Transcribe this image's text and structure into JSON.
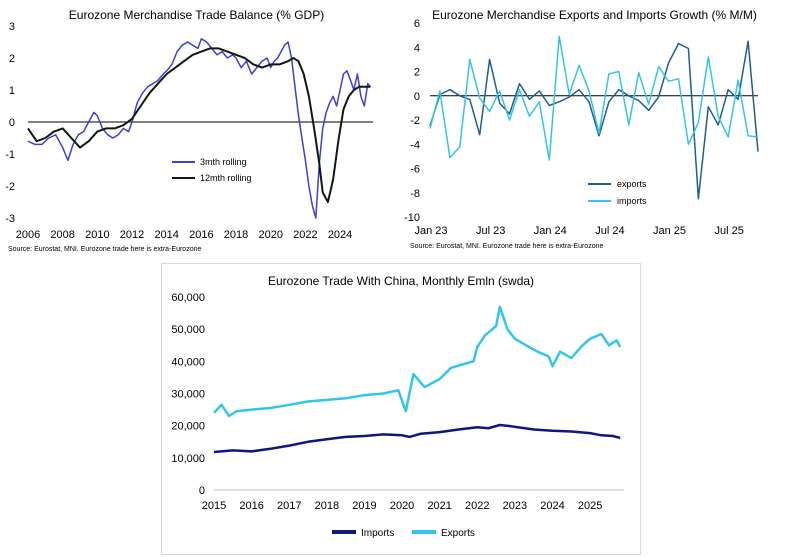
{
  "chart_data": [
    {
      "type": "line",
      "title": "Eurozone Merchandise Trade Balance (% GDP)",
      "xlabel": "",
      "ylabel": "",
      "ylim": [
        -3,
        3
      ],
      "xlim": [
        2006,
        2025.9
      ],
      "yticks": [
        "-3",
        "-2",
        "-1",
        "0",
        "1",
        "2",
        "3"
      ],
      "xticks": [
        "2006",
        "2008",
        "2010",
        "2012",
        "2014",
        "2016",
        "2018",
        "2020",
        "2022",
        "2024"
      ],
      "legend_position": "center",
      "source": "Source: Eurostat, MNI.  Eurozone trade here is extra-Eurozone",
      "series": [
        {
          "name": "3mth rolling",
          "color": "#3f3fcc",
          "x": [
            2006.0,
            2006.4,
            2006.8,
            2007.2,
            2007.6,
            2008.0,
            2008.3,
            2008.6,
            2008.9,
            2009.2,
            2009.5,
            2009.8,
            2010.0,
            2010.3,
            2010.6,
            2010.9,
            2011.2,
            2011.5,
            2011.8,
            2012.0,
            2012.3,
            2012.6,
            2012.9,
            2013.2,
            2013.5,
            2013.8,
            2014.0,
            2014.3,
            2014.6,
            2014.9,
            2015.2,
            2015.5,
            2015.8,
            2016.0,
            2016.3,
            2016.6,
            2016.9,
            2017.2,
            2017.5,
            2017.8,
            2018.0,
            2018.3,
            2018.6,
            2018.9,
            2019.2,
            2019.5,
            2019.8,
            2020.0,
            2020.2,
            2020.4,
            2020.6,
            2020.8,
            2021.0,
            2021.2,
            2021.4,
            2021.6,
            2021.8,
            2022.0,
            2022.2,
            2022.4,
            2022.6,
            2022.8,
            2023.0,
            2023.2,
            2023.4,
            2023.6,
            2023.8,
            2024.0,
            2024.2,
            2024.4,
            2024.6,
            2024.8,
            2025.0,
            2025.2,
            2025.4,
            2025.6,
            2025.75
          ],
          "values": [
            -0.6,
            -0.7,
            -0.7,
            -0.5,
            -0.4,
            -0.8,
            -1.2,
            -0.7,
            -0.4,
            -0.3,
            0.0,
            0.3,
            0.2,
            -0.2,
            -0.4,
            -0.5,
            -0.4,
            -0.2,
            -0.3,
            0.0,
            0.6,
            0.9,
            1.1,
            1.2,
            1.3,
            1.5,
            1.6,
            1.8,
            2.2,
            2.4,
            2.5,
            2.4,
            2.3,
            2.6,
            2.5,
            2.3,
            2.1,
            2.2,
            2.0,
            2.1,
            2.0,
            1.7,
            1.9,
            1.5,
            1.7,
            1.9,
            2.0,
            1.7,
            1.9,
            2.0,
            2.2,
            2.4,
            2.5,
            2.0,
            1.1,
            0.2,
            -0.5,
            -1.2,
            -2.0,
            -2.6,
            -3.0,
            -1.3,
            -0.2,
            0.3,
            0.6,
            0.8,
            0.5,
            1.0,
            1.5,
            1.6,
            1.3,
            1.0,
            1.5,
            0.8,
            0.5,
            1.2,
            1.1
          ]
        },
        {
          "name": "12mth rolling",
          "color": "#0d1a0d",
          "x": [
            2006.0,
            2006.5,
            2007.0,
            2007.5,
            2008.0,
            2008.5,
            2009.0,
            2009.5,
            2010.0,
            2010.5,
            2011.0,
            2011.5,
            2012.0,
            2012.5,
            2013.0,
            2013.5,
            2014.0,
            2014.5,
            2015.0,
            2015.5,
            2016.0,
            2016.5,
            2017.0,
            2017.5,
            2018.0,
            2018.5,
            2019.0,
            2019.5,
            2020.0,
            2020.5,
            2021.0,
            2021.3,
            2021.6,
            2021.9,
            2022.2,
            2022.5,
            2022.8,
            2023.0,
            2023.3,
            2023.6,
            2023.9,
            2024.2,
            2024.5,
            2024.8,
            2025.1,
            2025.4,
            2025.75
          ],
          "values": [
            -0.2,
            -0.6,
            -0.5,
            -0.3,
            -0.2,
            -0.5,
            -0.8,
            -0.6,
            -0.3,
            -0.2,
            -0.2,
            -0.1,
            0.1,
            0.5,
            0.9,
            1.2,
            1.5,
            1.7,
            1.9,
            2.1,
            2.2,
            2.3,
            2.3,
            2.2,
            2.1,
            2.0,
            1.8,
            1.7,
            1.8,
            1.8,
            1.9,
            2.0,
            1.9,
            1.5,
            0.8,
            -0.2,
            -1.3,
            -2.2,
            -2.5,
            -1.8,
            -0.6,
            0.4,
            0.8,
            1.0,
            1.1,
            1.1,
            1.1
          ]
        }
      ]
    },
    {
      "type": "line",
      "title": "Eurozone Merchandise Exports and Imports Growth (% M/M)",
      "xlabel": "",
      "ylabel": "",
      "ylim": [
        -10,
        6
      ],
      "yticks": [
        "-10",
        "-8",
        "-6",
        "-4",
        "-2",
        "0",
        "2",
        "4",
        "6"
      ],
      "xticks": [
        "Jan 23",
        "Jul 23",
        "Jan 24",
        "Jul 24",
        "Jan 25",
        "Jul 25"
      ],
      "legend_position": "bottom-right",
      "source": "Source: Eurostat, MNI.  Eurozone trade here is extra-Eurozone",
      "series": [
        {
          "name": "exports",
          "color": "#1f5f8b",
          "x": [
            0,
            1,
            2,
            3,
            4,
            5,
            6,
            7,
            8,
            9,
            10,
            11,
            12,
            13,
            14,
            15,
            16,
            17,
            18,
            19,
            20,
            21,
            22,
            23,
            24,
            25,
            26,
            27,
            28,
            29,
            30,
            31,
            32,
            33
          ],
          "values": [
            -2.5,
            0.1,
            0.5,
            0.0,
            -0.3,
            -3.2,
            3.0,
            -0.6,
            -1.5,
            1.0,
            -0.3,
            0.4,
            -0.8,
            -0.5,
            -0.1,
            0.5,
            -0.5,
            -3.3,
            -0.5,
            0.5,
            0.0,
            -0.4,
            -1.2,
            -0.1,
            2.7,
            4.3,
            3.9,
            -8.5,
            -0.9,
            -2.4,
            0.5,
            -0.3,
            4.5,
            -4.6
          ]
        },
        {
          "name": "imports",
          "color": "#36c3e8",
          "x": [
            0,
            1,
            2,
            3,
            4,
            5,
            6,
            7,
            8,
            9,
            10,
            11,
            12,
            13,
            14,
            15,
            16,
            17,
            18,
            19,
            20,
            21,
            22,
            23,
            24,
            25,
            26,
            27,
            28,
            29,
            30,
            31,
            32,
            33
          ],
          "values": [
            -2.7,
            0.4,
            -5.1,
            -4.2,
            3.0,
            -0.2,
            -1.3,
            0.4,
            -2.0,
            0.5,
            -1.7,
            -0.5,
            -5.3,
            4.9,
            0.1,
            2.5,
            0.4,
            -3.1,
            1.8,
            2.0,
            -2.4,
            1.9,
            -0.7,
            2.4,
            1.2,
            1.4,
            -4.0,
            -2.2,
            3.2,
            -1.7,
            -3.4,
            1.3,
            -3.3,
            -3.4
          ]
        }
      ]
    },
    {
      "type": "line",
      "title": "Eurozone Trade With China, Monthly Emln (swda)",
      "xlabel": "",
      "ylabel": "",
      "ylim": [
        0,
        60000
      ],
      "yticks": [
        "0",
        "10,000",
        "20,000",
        "30,000",
        "40,000",
        "50,000",
        "60,000"
      ],
      "xticks": [
        "2015",
        "2016",
        "2017",
        "2018",
        "2019",
        "2020",
        "2021",
        "2022",
        "2023",
        "2024",
        "2025"
      ],
      "legend_position": "bottom",
      "series": [
        {
          "name": "Imports",
          "color": "#0c1880",
          "x": [
            2015.0,
            2015.5,
            2016.0,
            2016.5,
            2017.0,
            2017.5,
            2018.0,
            2018.5,
            2019.0,
            2019.5,
            2020.0,
            2020.2,
            2020.5,
            2021.0,
            2021.5,
            2022.0,
            2022.3,
            2022.6,
            2022.9,
            2023.2,
            2023.5,
            2024.0,
            2024.5,
            2025.0,
            2025.3,
            2025.6,
            2025.8
          ],
          "values": [
            11800,
            12300,
            12000,
            12800,
            13800,
            15000,
            15800,
            16500,
            16800,
            17300,
            17000,
            16500,
            17500,
            18000,
            18800,
            19500,
            19200,
            20200,
            19800,
            19300,
            18800,
            18400,
            18200,
            17700,
            17000,
            16800,
            16200
          ]
        },
        {
          "name": "Exports",
          "color": "#33c5ea",
          "x": [
            2015.0,
            2015.2,
            2015.4,
            2015.6,
            2016.0,
            2016.5,
            2017.0,
            2017.5,
            2018.0,
            2018.5,
            2019.0,
            2019.5,
            2019.9,
            2020.1,
            2020.3,
            2020.6,
            2021.0,
            2021.3,
            2021.6,
            2021.9,
            2022.0,
            2022.2,
            2022.5,
            2022.6,
            2022.8,
            2023.0,
            2023.3,
            2023.6,
            2023.9,
            2024.0,
            2024.2,
            2024.5,
            2024.8,
            2025.0,
            2025.3,
            2025.5,
            2025.7,
            2025.8
          ],
          "values": [
            24000,
            26500,
            23000,
            24500,
            25000,
            25500,
            26500,
            27500,
            28000,
            28500,
            29500,
            30000,
            31000,
            24500,
            36000,
            32000,
            34500,
            38000,
            39000,
            40000,
            44500,
            48000,
            51000,
            57000,
            50000,
            47000,
            45000,
            43000,
            41500,
            38500,
            43000,
            41000,
            45000,
            47000,
            48500,
            45000,
            46500,
            44500
          ]
        }
      ]
    }
  ]
}
